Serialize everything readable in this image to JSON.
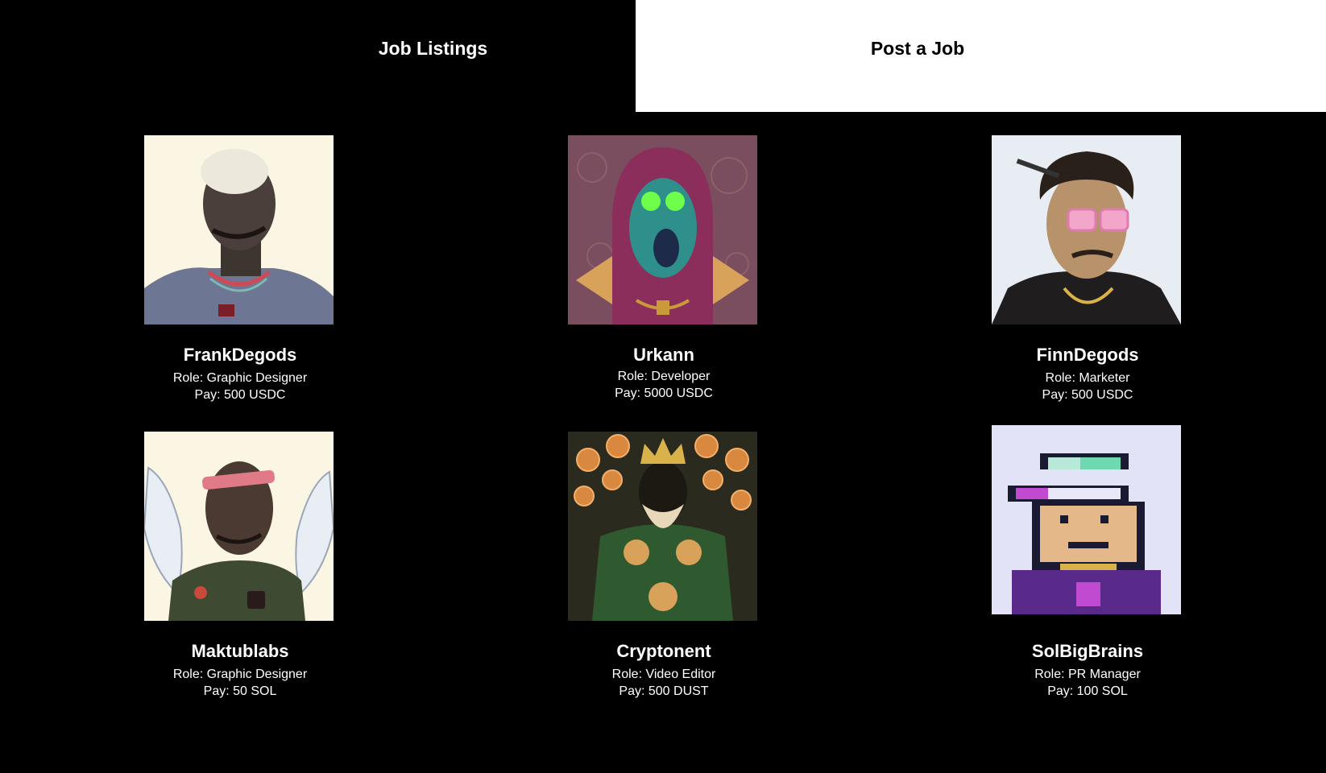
{
  "tabs": {
    "job_listings": "Job Listings",
    "post_a_job": "Post a Job"
  },
  "listings": [
    {
      "name": "FrankDegods",
      "role": "Role: Graphic Designer",
      "pay": "Pay: 500 USDC",
      "avatar_bg": "#fbf5e4",
      "icon": "bearded-man-avatar-icon"
    },
    {
      "name": "Urkann",
      "role": "Role: Developer",
      "pay": "Pay: 5000 USDC",
      "avatar_bg": "#7a4e5e",
      "icon": "hooded-alien-avatar-icon"
    },
    {
      "name": "FinnDegods",
      "role": "Role: Marketer",
      "pay": "Pay: 500 USDC",
      "avatar_bg": "#e8edf3",
      "icon": "sunglasses-man-avatar-icon"
    },
    {
      "name": "Maktublabs",
      "role": "Role: Graphic Designer",
      "pay": "Pay: 50 SOL",
      "avatar_bg": "#fbf5e4",
      "icon": "winged-man-avatar-icon"
    },
    {
      "name": "Cryptonent",
      "role": "Role: Video Editor",
      "pay": "Pay: 500 DUST",
      "avatar_bg": "#2b2a1f",
      "icon": "crowned-king-avatar-icon"
    },
    {
      "name": "SolBigBrains",
      "role": "Role: PR Manager",
      "pay": "Pay: 100 SOL",
      "avatar_bg": "#e3e3f7",
      "icon": "pixel-ape-avatar-icon"
    }
  ]
}
